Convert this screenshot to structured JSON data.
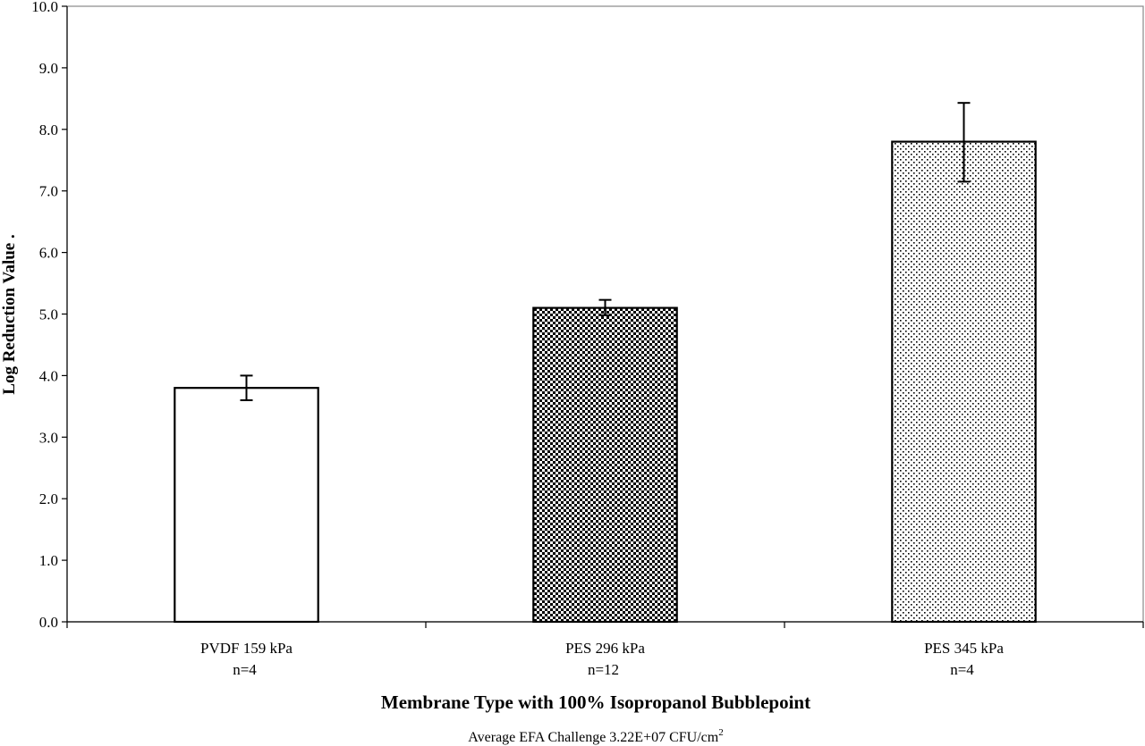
{
  "chart_data": {
    "type": "bar",
    "categories": [
      {
        "line1": "PVDF 159 kPa",
        "line2": "n=4"
      },
      {
        "line1": "PES 296 kPa",
        "line2": "n=12"
      },
      {
        "line1": "PES 345 kPa",
        "line2": "n=4"
      }
    ],
    "values": [
      3.8,
      5.1,
      7.8
    ],
    "error_low": [
      3.6,
      4.98,
      7.15
    ],
    "error_high": [
      4.0,
      5.23,
      8.43
    ],
    "fill_patterns": [
      "none",
      "dense-dots",
      "sparse-dots"
    ],
    "ylabel": "Log Reduction Value .",
    "xlabel": "Membrane Type with 100% Isopropanol Bubblepoint",
    "ylim": [
      0,
      10
    ],
    "yticks": [
      "0.0",
      "1.0",
      "2.0",
      "3.0",
      "4.0",
      "5.0",
      "6.0",
      "7.0",
      "8.0",
      "9.0",
      "10.0"
    ],
    "grid": false,
    "footnote": {
      "text": "Average EFA Challenge 3.22E+07  CFU/cm",
      "superscript": "2"
    }
  }
}
